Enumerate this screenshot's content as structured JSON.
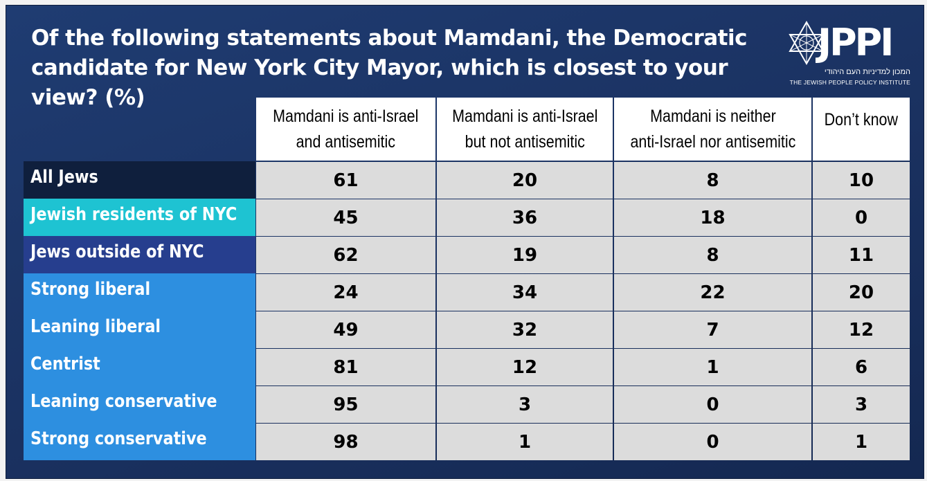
{
  "chart_data": {
    "type": "table",
    "title": "Of the following statements about Mamdani, the Democratic candidate for New York City Mayor, which is closest to your view? (%)",
    "columns": [
      "Mamdani is anti-Israel and antisemitic",
      "Mamdani is anti-Israel but not antisemitic",
      "Mamdani is neither anti-Israel nor antisemitic",
      "Don’t know"
    ],
    "rows": [
      {
        "label": "All Jews",
        "color": "#0f1f3d",
        "values": [
          61,
          20,
          8,
          10
        ]
      },
      {
        "label": "Jewish residents of NYC",
        "color": "#1ec3d2",
        "values": [
          45,
          36,
          18,
          0
        ]
      },
      {
        "label": "Jews outside of NYC",
        "color": "#263e8e",
        "values": [
          62,
          19,
          8,
          11
        ]
      },
      {
        "label": "Strong liberal",
        "color": "#2d8fe0",
        "values": [
          24,
          34,
          22,
          20
        ]
      },
      {
        "label": "Leaning liberal",
        "color": "#2d8fe0",
        "values": [
          49,
          32,
          7,
          12
        ]
      },
      {
        "label": "Centrist",
        "color": "#2d8fe0",
        "values": [
          81,
          12,
          1,
          6
        ]
      },
      {
        "label": "Leaning conservative",
        "color": "#2d8fe0",
        "values": [
          95,
          3,
          0,
          3
        ]
      },
      {
        "label": "Strong conservative",
        "color": "#2d8fe0",
        "values": [
          98,
          1,
          0,
          1
        ]
      }
    ]
  },
  "logo": {
    "name": "JPPI",
    "hebrew": "המכון למדיניות העם היהודי",
    "english": "THE JEWISH PEOPLE POLICY INSTITUTE"
  }
}
